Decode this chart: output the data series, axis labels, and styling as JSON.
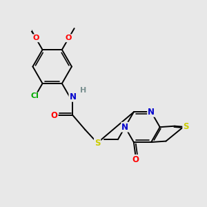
{
  "background_color": "#e8e8e8",
  "bond_color": "#000000",
  "atom_colors": {
    "O": "#ff0000",
    "N": "#0000cd",
    "S": "#cccc00",
    "Cl": "#00aa00",
    "C": "#000000",
    "H": "#7a9090"
  },
  "figsize": [
    3.0,
    3.0
  ],
  "dpi": 100,
  "lw": 1.4
}
